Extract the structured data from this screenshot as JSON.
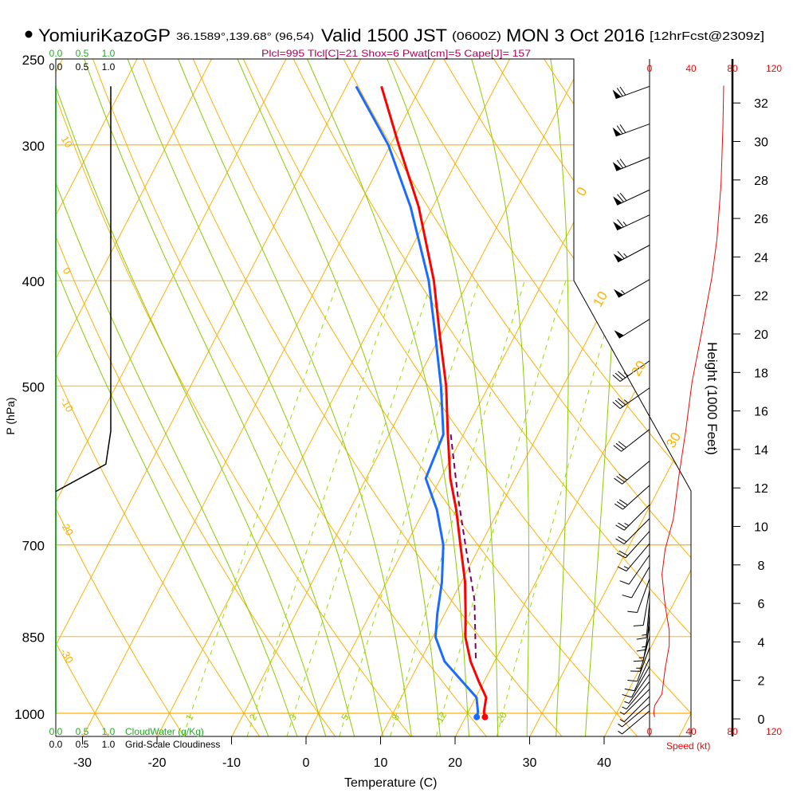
{
  "header": {
    "station": "YomiuriKazoGP",
    "coords": "36.1589°,139.68° (96,54)",
    "valid": "Valid 1500 JST",
    "utc": "(0600Z)",
    "date": "MON 3 Oct 2016",
    "forecast": "[12hrFcst@2309z]"
  },
  "indices": "Plcl=995 Tlcl[C]=21 Shox=6 Pwat[cm]=5 Cape[J]= 157",
  "colors": {
    "temperature": "#ff0000",
    "dewpoint": "#1a6cff",
    "parcel": "#800060",
    "isotherm": "#ffb000",
    "moist": "#88cc00",
    "indices": "#b0005a"
  },
  "chart_data": {
    "type": "line",
    "subtype": "skew-T log-P sounding",
    "xlabel": "Temperature (C)",
    "ylabel": "P (hPa)",
    "x_ticks": [
      -30,
      -20,
      -10,
      0,
      10,
      20,
      30,
      40
    ],
    "pressure_ticks": [
      250,
      300,
      400,
      500,
      700,
      850,
      1000
    ],
    "temperature": {
      "name": "Temperature",
      "p": [
        265,
        300,
        342,
        400,
        449,
        500,
        554,
        608,
        650,
        700,
        757,
        810,
        851,
        896,
        935,
        967,
        997,
        1008
      ],
      "T": [
        -35.3,
        -28.9,
        -21.9,
        -14.7,
        -10.1,
        -5.7,
        -2.1,
        1.3,
        4.3,
        7.3,
        10.5,
        12.8,
        14.4,
        16.8,
        19.3,
        21.4,
        22.1,
        22.6
      ]
    },
    "dewpoint": {
      "name": "Dewpoint",
      "p": [
        265,
        300,
        342,
        400,
        449,
        500,
        554,
        608,
        650,
        700,
        757,
        810,
        851,
        896,
        935,
        967,
        997,
        1008
      ],
      "Td": [
        -38.7,
        -30.3,
        -23.0,
        -15.4,
        -10.7,
        -6.4,
        -2.7,
        -2.0,
        1.7,
        5.0,
        7.4,
        9.0,
        10.4,
        13.3,
        17.1,
        20.1,
        21.3,
        21.5
      ]
    },
    "parcel": {
      "name": "Parcel",
      "p": [
        554,
        629,
        707,
        786,
        896
      ],
      "T": [
        -1.7,
        3.4,
        8.4,
        13.0,
        17.5
      ]
    },
    "isotherm_labels": [
      "0",
      "10",
      "20",
      "30"
    ],
    "dry_adiabat_labels": [
      "10",
      "0",
      "-10",
      "-20",
      "-30"
    ],
    "mixing_ratio_labels": [
      "1",
      "2",
      "3",
      "5",
      "8",
      "12",
      "20"
    ],
    "winds": [
      {
        "p": 265,
        "dir": 250,
        "spd": 70
      },
      {
        "p": 287,
        "dir": 250,
        "spd": 70
      },
      {
        "p": 308,
        "dir": 248,
        "spd": 70
      },
      {
        "p": 330,
        "dir": 245,
        "spd": 68
      },
      {
        "p": 348,
        "dir": 245,
        "spd": 65
      },
      {
        "p": 371,
        "dir": 242,
        "spd": 63
      },
      {
        "p": 399,
        "dir": 240,
        "spd": 55
      },
      {
        "p": 434,
        "dir": 238,
        "spd": 50
      },
      {
        "p": 474,
        "dir": 235,
        "spd": 35
      },
      {
        "p": 502,
        "dir": 235,
        "spd": 35
      },
      {
        "p": 548,
        "dir": 232,
        "spd": 32
      },
      {
        "p": 586,
        "dir": 230,
        "spd": 30
      },
      {
        "p": 617,
        "dir": 228,
        "spd": 28
      },
      {
        "p": 643,
        "dir": 225,
        "spd": 25
      },
      {
        "p": 662,
        "dir": 225,
        "spd": 22
      },
      {
        "p": 680,
        "dir": 222,
        "spd": 18
      },
      {
        "p": 698,
        "dir": 220,
        "spd": 15
      },
      {
        "p": 715,
        "dir": 215,
        "spd": 12
      },
      {
        "p": 733,
        "dir": 210,
        "spd": 10
      },
      {
        "p": 752,
        "dir": 200,
        "spd": 10
      },
      {
        "p": 770,
        "dir": 190,
        "spd": 12
      },
      {
        "p": 790,
        "dir": 185,
        "spd": 15
      },
      {
        "p": 810,
        "dir": 185,
        "spd": 17
      },
      {
        "p": 830,
        "dir": 190,
        "spd": 15
      },
      {
        "p": 850,
        "dir": 195,
        "spd": 14
      },
      {
        "p": 870,
        "dir": 200,
        "spd": 12
      },
      {
        "p": 890,
        "dir": 205,
        "spd": 10
      },
      {
        "p": 905,
        "dir": 210,
        "spd": 8
      },
      {
        "p": 920,
        "dir": 215,
        "spd": 7
      },
      {
        "p": 935,
        "dir": 220,
        "spd": 6
      },
      {
        "p": 950,
        "dir": 225,
        "spd": 5
      },
      {
        "p": 965,
        "dir": 225,
        "spd": 5
      },
      {
        "p": 980,
        "dir": 230,
        "spd": 5
      },
      {
        "p": 995,
        "dir": 230,
        "spd": 5
      }
    ],
    "speed_profile": {
      "height_kft": [
        32.9,
        30.7,
        27.8,
        24.9,
        22.9,
        20.0,
        17.5,
        15.0,
        12.5,
        10.4,
        8.8,
        7.5,
        5.9,
        4.6,
        3.8,
        2.6,
        1.3,
        0.7,
        0.3,
        0.1
      ],
      "speed_kt": [
        71.5,
        70.8,
        69,
        65,
        60,
        50,
        41,
        35,
        28,
        23,
        15,
        12,
        15,
        19,
        19,
        15,
        12,
        5,
        4,
        5
      ]
    },
    "speed_ticks": [
      "0",
      "40",
      "80",
      "120"
    ],
    "speed_label": "Speed (kt)",
    "height_ticks": [
      0,
      2,
      4,
      6,
      8,
      10,
      12,
      14,
      16,
      18,
      20,
      22,
      24,
      26,
      28,
      30,
      32
    ],
    "height_label": "Height (1000 Feet)",
    "cloudiness": {
      "p": [
        265,
        550,
        590,
        625
      ],
      "value": [
        1.0,
        1.0,
        0.91,
        0.0
      ]
    },
    "cloudwater": {
      "p": [
        265,
        1000
      ],
      "value": [
        0.0,
        0.0
      ]
    },
    "cloud_ticks": [
      "0.0",
      "0.5",
      "1.0"
    ],
    "cloudwater_label": "CloudWater (g/Kg)",
    "cloudiness_label": "Grid-Scale Cloudiness"
  }
}
